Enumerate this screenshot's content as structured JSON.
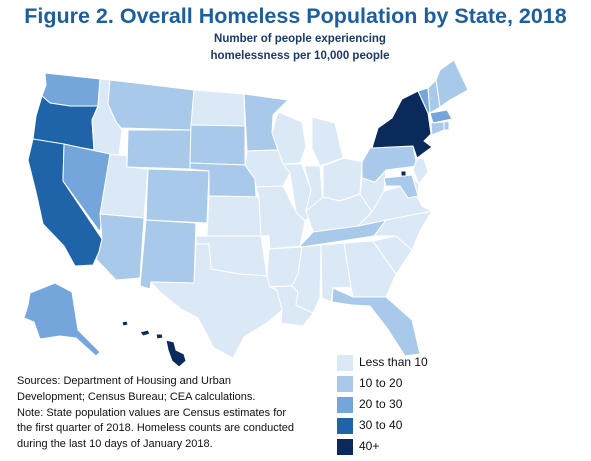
{
  "title": "Figure 2. Overall Homeless Population by State, 2018",
  "subtitle_line1": "Number of people experiencing",
  "subtitle_line2": "homelessness per 10,000 people",
  "colors": {
    "lt10": "#dbe8f5",
    "10to20": "#a9c9ea",
    "20to30": "#74a6dc",
    "30to40": "#1f64a8",
    "40plus": "#0b2a5c",
    "border": "#ffffff"
  },
  "legend": [
    {
      "label": "Less than 10",
      "color": "#dbe8f5"
    },
    {
      "label": "10 to 20",
      "color": "#a9c9ea"
    },
    {
      "label": "20 to 30",
      "color": "#74a6dc"
    },
    {
      "label": "30 to 40",
      "color": "#1f64a8"
    },
    {
      "label": "40+",
      "color": "#0b2a5c"
    }
  ],
  "states_by_class": {
    "lt10": [
      "ID",
      "UT",
      "ND",
      "KS",
      "OK",
      "TX",
      "IA",
      "MO",
      "AR",
      "LA",
      "WI",
      "MI",
      "IL",
      "IN",
      "OH",
      "KY",
      "MS",
      "AL",
      "WV",
      "VA",
      "NC",
      "SC",
      "GA",
      "NJ",
      "DE"
    ],
    "10to20": [
      "MT",
      "WY",
      "SD",
      "NE",
      "MN",
      "CO",
      "AZ",
      "NM",
      "ME",
      "NH",
      "RI",
      "CT",
      "PA",
      "MD",
      "TN",
      "FL"
    ],
    "20to30": [
      "WA",
      "NV",
      "AK",
      "VT",
      "MA"
    ],
    "30to40": [
      "OR",
      "CA"
    ],
    "40plus": [
      "NY",
      "HI",
      "DC"
    ]
  },
  "sources_line1": "Sources: Department of Housing and Urban",
  "sources_line2": "Development; Census Bureau; CEA calculations.",
  "note_line1": "Note: State population values are Census estimates for",
  "note_line2": "the first quarter of 2018. Homeless counts are conducted",
  "note_line3": "during the last 10 days of January 2018."
}
